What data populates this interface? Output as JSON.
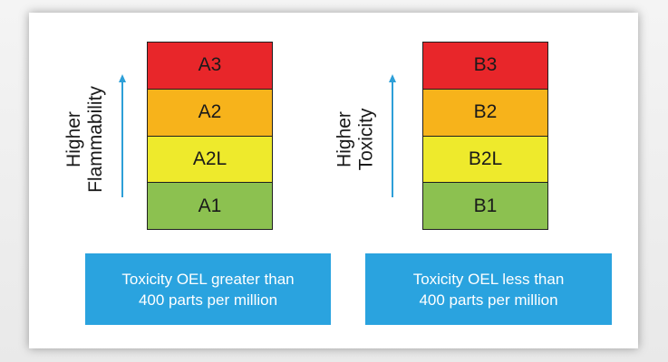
{
  "colors": {
    "level3": "#e8262a",
    "level2": "#f7b31b",
    "level2l": "#eeea2c",
    "level1": "#8cc150",
    "arrow": "#2d9fd8",
    "box": "#2aa3df"
  },
  "groupA": {
    "axis_label_line1": "Higher",
    "axis_label_line2": "Flammability",
    "cells": [
      "A3",
      "A2",
      "A2L",
      "A1"
    ],
    "box_line1": "Toxicity OEL greater than",
    "box_line2": "400 parts per million"
  },
  "groupB": {
    "axis_label_line1": "Higher",
    "axis_label_line2": "Toxicity",
    "cells": [
      "B3",
      "B2",
      "B2L",
      "B1"
    ],
    "box_line1": "Toxicity OEL less than",
    "box_line2": "400 parts per million"
  }
}
